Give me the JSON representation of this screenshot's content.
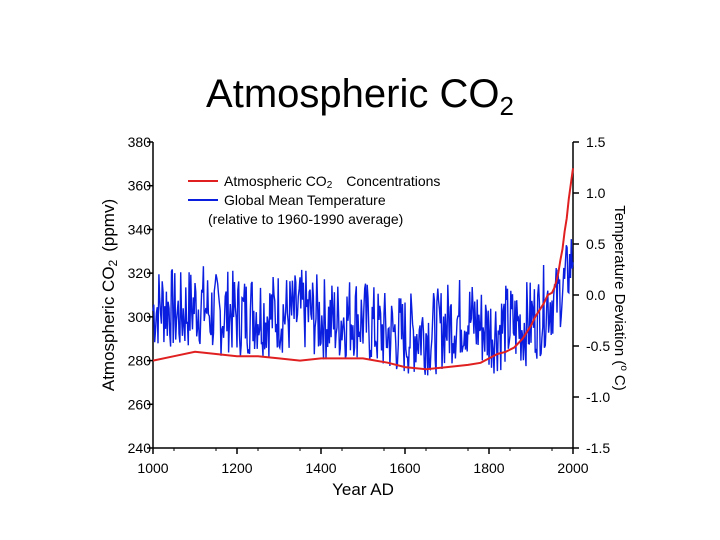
{
  "slide": {
    "title_main": "Atmospheric CO",
    "title_sub": "2"
  },
  "chart_data": {
    "type": "line",
    "title": "Atmospheric CO2",
    "xlabel": "Year AD",
    "ylabel_left_main": "Atmospheric CO",
    "ylabel_left_sub": "2",
    "ylabel_left_units": "(ppmv)",
    "ylabel_right_main": "Temperature Deviation (",
    "ylabel_right_sup": "o",
    "ylabel_right_units": "C)",
    "xlim": [
      1000,
      2000
    ],
    "ylim_left": [
      240,
      380
    ],
    "ylim_right": [
      -1.5,
      1.5
    ],
    "x_ticks": [
      "1000",
      "1200",
      "1400",
      "1600",
      "1800",
      "2000"
    ],
    "y_left_ticks": [
      "380",
      "360",
      "340",
      "320",
      "300",
      "280",
      "260",
      "240"
    ],
    "y_right_ticks": [
      "1.5",
      "1.0",
      "0.5",
      "0.0",
      "-0.5",
      "-1.0",
      "-1.5"
    ],
    "legend": {
      "co2_label_main": "Atmospheric CO",
      "co2_label_sub": "2",
      "co2_label_tail": "Concentrations",
      "temp_label": "Global Mean Temperature",
      "temp_note": "(relative to 1960-1990 average)"
    },
    "colors": {
      "co2": "#e02020",
      "temp": "#0a1ee0",
      "axis": "#000000"
    },
    "series": [
      {
        "name": "Atmospheric CO2 Concentrations",
        "axis": "left",
        "x": [
          1000,
          1050,
          1100,
          1150,
          1200,
          1250,
          1300,
          1350,
          1400,
          1450,
          1500,
          1530,
          1560,
          1600,
          1650,
          1700,
          1750,
          1780,
          1800,
          1820,
          1840,
          1860,
          1880,
          1900,
          1910,
          1920,
          1930,
          1940,
          1950,
          1955,
          1960,
          1965,
          1970,
          1975,
          1980,
          1985,
          1990,
          1995,
          2000
        ],
        "values": [
          280,
          282,
          284,
          283,
          282,
          282,
          281,
          280,
          281,
          281,
          281,
          280,
          279,
          277,
          276,
          277,
          278,
          279,
          281,
          283,
          284,
          286,
          290,
          296,
          300,
          303,
          306,
          310,
          311,
          313,
          316,
          320,
          326,
          331,
          339,
          345,
          354,
          361,
          368
        ]
      },
      {
        "name": "Global Mean Temperature",
        "axis": "right",
        "x": [
          1000,
          1020,
          1040,
          1060,
          1080,
          1100,
          1120,
          1140,
          1160,
          1180,
          1200,
          1220,
          1240,
          1260,
          1280,
          1300,
          1320,
          1340,
          1360,
          1380,
          1400,
          1420,
          1440,
          1460,
          1480,
          1500,
          1520,
          1540,
          1560,
          1580,
          1600,
          1620,
          1640,
          1660,
          1680,
          1700,
          1720,
          1740,
          1760,
          1780,
          1800,
          1820,
          1840,
          1860,
          1880,
          1900,
          1920,
          1940,
          1960,
          1980,
          2000
        ],
        "values": [
          -0.15,
          -0.1,
          -0.12,
          -0.2,
          -0.15,
          -0.1,
          -0.1,
          -0.18,
          -0.2,
          -0.15,
          -0.2,
          -0.2,
          -0.15,
          -0.18,
          -0.2,
          -0.15,
          -0.2,
          -0.2,
          -0.15,
          -0.2,
          -0.22,
          -0.25,
          -0.25,
          -0.22,
          -0.2,
          -0.25,
          -0.3,
          -0.35,
          -0.38,
          -0.38,
          -0.4,
          -0.38,
          -0.35,
          -0.38,
          -0.35,
          -0.28,
          -0.25,
          -0.2,
          -0.25,
          -0.3,
          -0.35,
          -0.35,
          -0.3,
          -0.3,
          -0.3,
          -0.25,
          -0.2,
          -0.05,
          -0.05,
          0.1,
          0.4
        ]
      }
    ]
  }
}
